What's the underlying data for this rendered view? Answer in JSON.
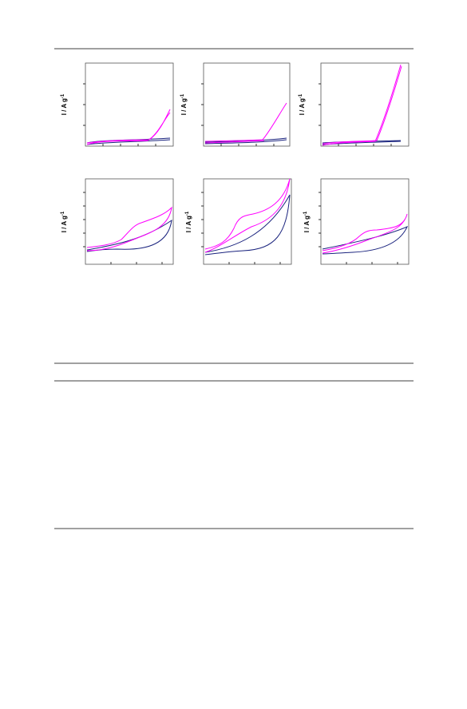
{
  "figures": [
    {
      "y_label": "I / A g",
      "y_label_sup": "-1"
    },
    {
      "y_label": "I / A g",
      "y_label_sup": "-1"
    },
    {
      "y_label": "I / A g",
      "y_label_sup": "-1"
    },
    {
      "y_label": "I / A g",
      "y_label_sup": "-1"
    },
    {
      "y_label": "I / A g",
      "y_label_sup": "-1"
    },
    {
      "y_label": "I / A g",
      "y_label_sup": "-1"
    }
  ]
}
